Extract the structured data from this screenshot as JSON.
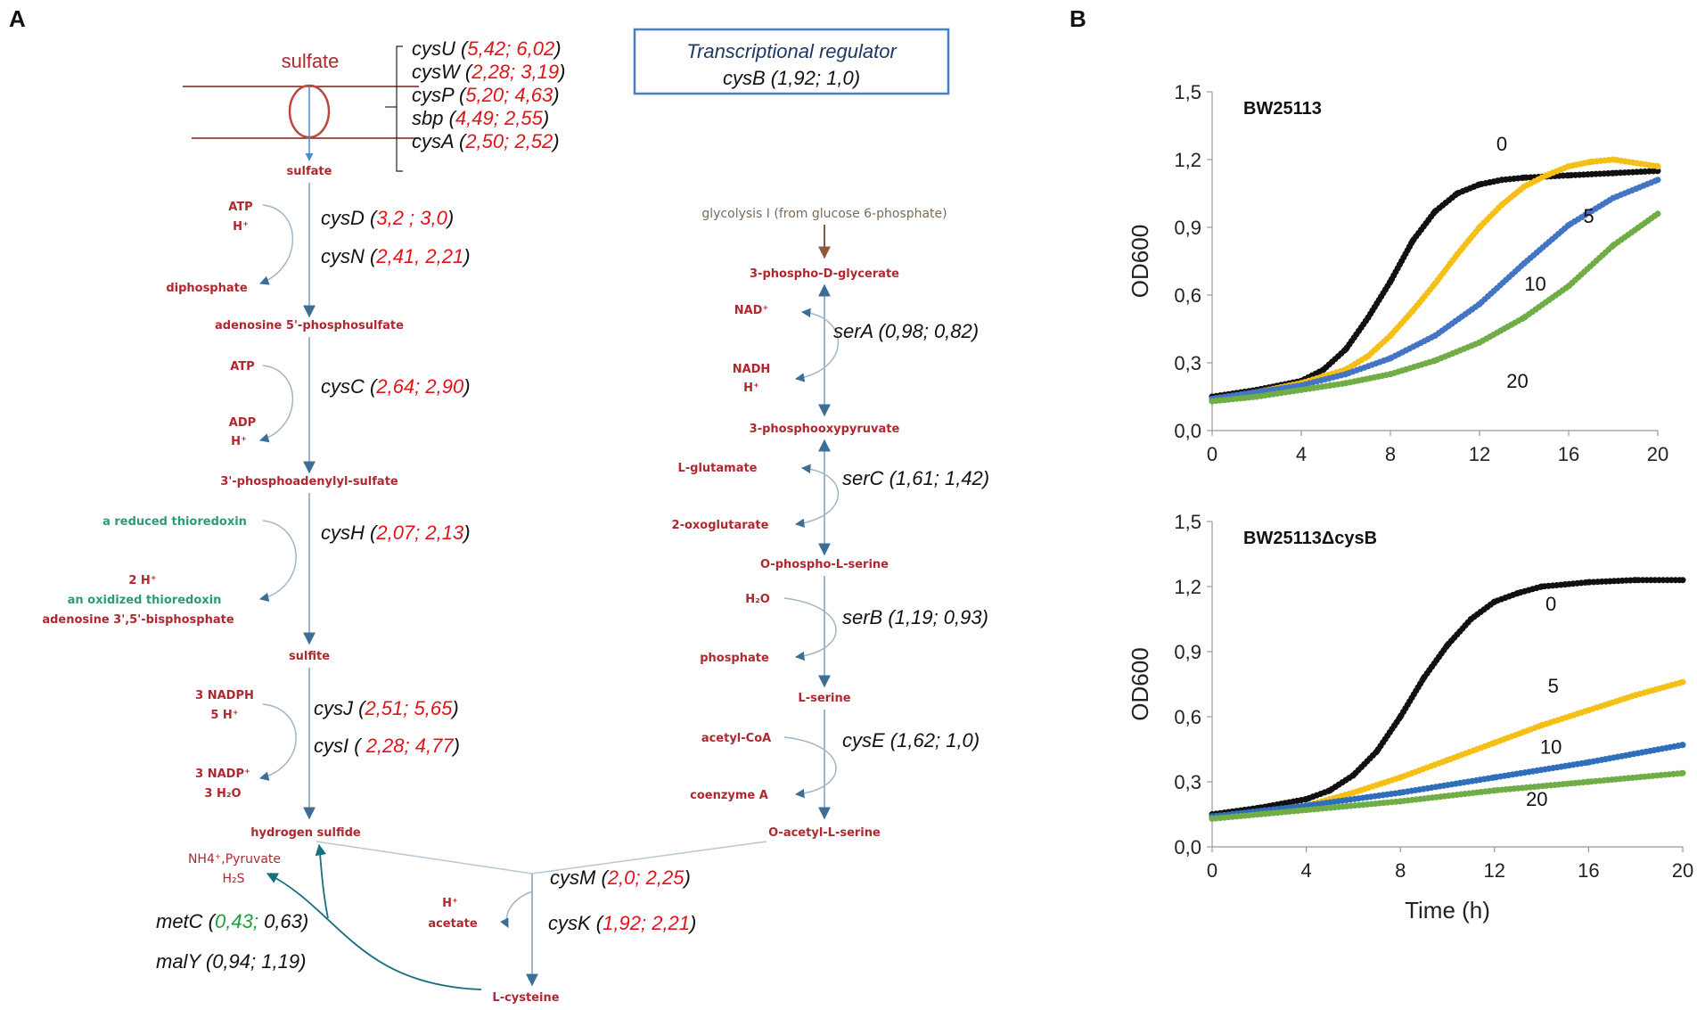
{
  "panels": {
    "a": "A",
    "b": "B"
  },
  "transport": {
    "label": "sulfate",
    "inner": "sulfate",
    "genes": [
      {
        "name": "cysU",
        "open": " (",
        "v1": "5,42",
        "sep": "; ",
        "v2": "6,02",
        "close": ")",
        "c1": "red",
        "c2": "red"
      },
      {
        "name": "cysW",
        "open": " (",
        "v1": "2,28",
        "sep": "; ",
        "v2": "3,19",
        "close": ")",
        "c1": "red",
        "c2": "red"
      },
      {
        "name": "cysP",
        "open": " (",
        "v1": "5,20",
        "sep": "; ",
        "v2": "4,63",
        "close": ")",
        "c1": "red",
        "c2": "red"
      },
      {
        "name": "sbp",
        "open": "   (",
        "v1": "4,49",
        "sep": "; ",
        "v2": "2,55",
        "close": ")",
        "c1": "red",
        "c2": "red"
      },
      {
        "name": "cysA",
        "open": " (",
        "v1": "2,50",
        "sep": "; ",
        "v2": "2,52",
        "close": ")",
        "c1": "red",
        "c2": "red"
      }
    ]
  },
  "regulator": {
    "title": "Transcriptional regulator",
    "gene": "cysB (1,92; 1,0)"
  },
  "left_pathway": {
    "metabolites": {
      "aps": "adenosine 5'-phosphosulfate",
      "paps": "3'-phosphoadenylyl-sulfate",
      "sulfite": "sulfite",
      "h2s": "hydrogen sulfide"
    },
    "cofactors": {
      "atp1": "ATP",
      "h1": "H⁺",
      "diphosphate": "diphosphate",
      "atp2": "ATP",
      "adp": "ADP",
      "h2": "H⁺",
      "thio_red": "a reduced thioredoxin",
      "twoh": "2 H⁺",
      "thio_ox": "an oxidized thioredoxin",
      "pap": "adenosine 3',5'-bisphosphate",
      "nadph": "3 NADPH",
      "fiveh": "5 H⁺",
      "nadp": "3 NADP⁺",
      "water": "3 H₂O"
    },
    "genes": [
      {
        "name": "cysD",
        "open": " (",
        "v1": "3,2 ",
        "sep": "; ",
        "v2": "3,0",
        "close": ")",
        "c1": "red",
        "c2": "red"
      },
      {
        "name": "cysN",
        "open": " (",
        "v1": "2,41",
        "sep": ", ",
        "v2": "2,21",
        "close": ")",
        "c1": "red",
        "c2": "red"
      },
      {
        "name": "cysC",
        "open": " (",
        "v1": "2,64",
        "sep": "; ",
        "v2": "2,90",
        "close": ")",
        "c1": "red",
        "c2": "red"
      },
      {
        "name": "cysH",
        "open": " (",
        "v1": "2,07",
        "sep": "; ",
        "v2": "2,13",
        "close": ")",
        "c1": "red",
        "c2": "red"
      },
      {
        "name": "cysJ",
        "open": " (",
        "v1": "2,51",
        "sep": "; ",
        "v2": "5,65",
        "close": ")",
        "c1": "red",
        "c2": "red"
      },
      {
        "name": "cysI",
        "open": " ( ",
        "v1": "2,28",
        "sep": "; ",
        "v2": "4,77",
        "close": ")",
        "c1": "red",
        "c2": "red"
      }
    ]
  },
  "right_pathway": {
    "source": "glycolysis I (from glucose 6-phosphate)",
    "metabolites": {
      "pg": "3-phospho-D-glycerate",
      "php": "3-phosphooxypyruvate",
      "ops": "O-phospho-L-serine",
      "ser": "L-serine",
      "oas": "O-acetyl-L-serine"
    },
    "cofactors": {
      "nad": "NAD⁺",
      "nadh": "NADH",
      "h": "H⁺",
      "glu": "L-glutamate",
      "akg": "2-oxoglutarate",
      "water": "H₂O",
      "phosphate": "phosphate",
      "acoa": "acetyl-CoA",
      "coa": "coenzyme A"
    },
    "genes": [
      {
        "name": "serA",
        "open": " (",
        "v1": "0,98",
        "sep": "; ",
        "v2": "0,82",
        "close": ")",
        "c1": "black",
        "c2": "black"
      },
      {
        "name": "serC",
        "open": " (",
        "v1": "1,61",
        "sep": "; ",
        "v2": "1,42",
        "close": ")",
        "c1": "black",
        "c2": "black"
      },
      {
        "name": "serB",
        "open": " (",
        "v1": "1,19",
        "sep": "; ",
        "v2": "0,93",
        "close": ")",
        "c1": "black",
        "c2": "black"
      },
      {
        "name": "cysE",
        "open": " (",
        "v1": "1,62",
        "sep": "; ",
        "v2": "1,0",
        "close": ")",
        "c1": "black",
        "c2": "black"
      }
    ]
  },
  "bottom": {
    "cysteine": "L-cysteine",
    "byproduct_h": "H⁺",
    "acetate": "acetate",
    "degradation": "NH4⁺,Pyruvate",
    "h2s_out": "H₂S",
    "genes": [
      {
        "name": "cysM",
        "open": " (",
        "v1": "2,0",
        "sep": "; ",
        "v2": "2,25",
        "close": ")",
        "c1": "red",
        "c2": "red"
      },
      {
        "name": "cysK",
        "open": " (",
        "v1": "1,92",
        "sep": "; ",
        "v2": "2,21",
        "close": ")",
        "c1": "red",
        "c2": "red"
      },
      {
        "name": "metC",
        "open": " (",
        "v1": "0,43",
        "sep": "; ",
        "v2": "0,63",
        "close": ")",
        "c1": "green",
        "c2": "black"
      },
      {
        "name": "malY",
        "open": " (",
        "v1": "0,94",
        "sep": "; ",
        "v2": "1,19",
        "close": ")",
        "c1": "black",
        "c2": "black"
      }
    ]
  },
  "colors": {
    "black": "#111111",
    "yellow": "#f5bf16",
    "blue": "#4474c4",
    "green": "#70ad47",
    "line": "#9fb5c9",
    "arrow": "#3d6e96"
  },
  "chart_data": [
    {
      "type": "scatter",
      "title": "BW25113",
      "xlabel": "",
      "ylabel": "OD600",
      "xlim": [
        0,
        20
      ],
      "ylim": [
        0,
        1.5
      ],
      "xticks": [
        "0",
        "4",
        "8",
        "12",
        "16",
        "20"
      ],
      "yticks": [
        "0,0",
        "0,3",
        "0,6",
        "0,9",
        "1,2",
        "1,5"
      ],
      "series": [
        {
          "name": "0",
          "color": "#111111",
          "x": [
            0,
            2,
            4,
            5,
            6,
            7,
            8,
            9,
            10,
            11,
            12,
            13,
            14,
            16,
            18,
            20
          ],
          "y": [
            0.15,
            0.18,
            0.22,
            0.27,
            0.36,
            0.5,
            0.66,
            0.84,
            0.97,
            1.05,
            1.09,
            1.11,
            1.12,
            1.13,
            1.14,
            1.15
          ]
        },
        {
          "name": "5",
          "color": "#f5bf16",
          "x": [
            0,
            2,
            4,
            6,
            7,
            8,
            9,
            10,
            11,
            12,
            13,
            14,
            15,
            16,
            17,
            18,
            20
          ],
          "y": [
            0.14,
            0.17,
            0.21,
            0.27,
            0.33,
            0.42,
            0.53,
            0.65,
            0.78,
            0.9,
            1.0,
            1.08,
            1.13,
            1.17,
            1.19,
            1.2,
            1.17
          ]
        },
        {
          "name": "10",
          "color": "#4474c4",
          "x": [
            0,
            2,
            4,
            6,
            8,
            10,
            12,
            14,
            16,
            18,
            20
          ],
          "y": [
            0.14,
            0.17,
            0.2,
            0.25,
            0.32,
            0.42,
            0.56,
            0.74,
            0.91,
            1.03,
            1.11
          ]
        },
        {
          "name": "20",
          "color": "#70ad47",
          "x": [
            0,
            2,
            4,
            6,
            8,
            10,
            12,
            14,
            16,
            18,
            20
          ],
          "y": [
            0.13,
            0.15,
            0.18,
            0.21,
            0.25,
            0.31,
            0.39,
            0.5,
            0.64,
            0.82,
            0.96
          ]
        }
      ],
      "label_positions": [
        {
          "text": "0",
          "x": 13,
          "y": 1.24
        },
        {
          "text": "5",
          "x": 16.9,
          "y": 0.92
        },
        {
          "text": "10",
          "x": 14.5,
          "y": 0.62
        },
        {
          "text": "20",
          "x": 13.7,
          "y": 0.19
        }
      ]
    },
    {
      "type": "scatter",
      "title": "BW25113ΔcysB",
      "xlabel": "Time (h)",
      "ylabel": "OD600",
      "xlim": [
        0,
        20
      ],
      "ylim": [
        0,
        1.5
      ],
      "xticks": [
        "0",
        "4",
        "8",
        "12",
        "16",
        "20"
      ],
      "yticks": [
        "0,0",
        "0,3",
        "0,6",
        "0,9",
        "1,2",
        "1,5"
      ],
      "series": [
        {
          "name": "0",
          "color": "#111111",
          "x": [
            0,
            2,
            4,
            5,
            6,
            7,
            8,
            9,
            10,
            11,
            12,
            13,
            14,
            15,
            16,
            18,
            20
          ],
          "y": [
            0.15,
            0.18,
            0.22,
            0.26,
            0.33,
            0.44,
            0.6,
            0.78,
            0.93,
            1.05,
            1.13,
            1.17,
            1.2,
            1.21,
            1.22,
            1.23,
            1.23
          ]
        },
        {
          "name": "5",
          "color": "#f5bf16",
          "x": [
            0,
            2,
            4,
            6,
            8,
            10,
            12,
            14,
            16,
            18,
            20
          ],
          "y": [
            0.14,
            0.16,
            0.19,
            0.25,
            0.32,
            0.4,
            0.48,
            0.56,
            0.63,
            0.7,
            0.76
          ]
        },
        {
          "name": "10",
          "color": "#2e6fba",
          "x": [
            0,
            4,
            8,
            12,
            16,
            20
          ],
          "y": [
            0.14,
            0.19,
            0.25,
            0.32,
            0.39,
            0.47
          ]
        },
        {
          "name": "20",
          "color": "#70ad47",
          "x": [
            0,
            4,
            8,
            12,
            16,
            20
          ],
          "y": [
            0.13,
            0.17,
            0.21,
            0.26,
            0.3,
            0.34
          ]
        }
      ],
      "label_positions": [
        {
          "text": "0",
          "x": 14.4,
          "y": 1.09
        },
        {
          "text": "5",
          "x": 14.5,
          "y": 0.71
        },
        {
          "text": "10",
          "x": 14.4,
          "y": 0.43
        },
        {
          "text": "20",
          "x": 13.8,
          "y": 0.19
        }
      ]
    }
  ]
}
